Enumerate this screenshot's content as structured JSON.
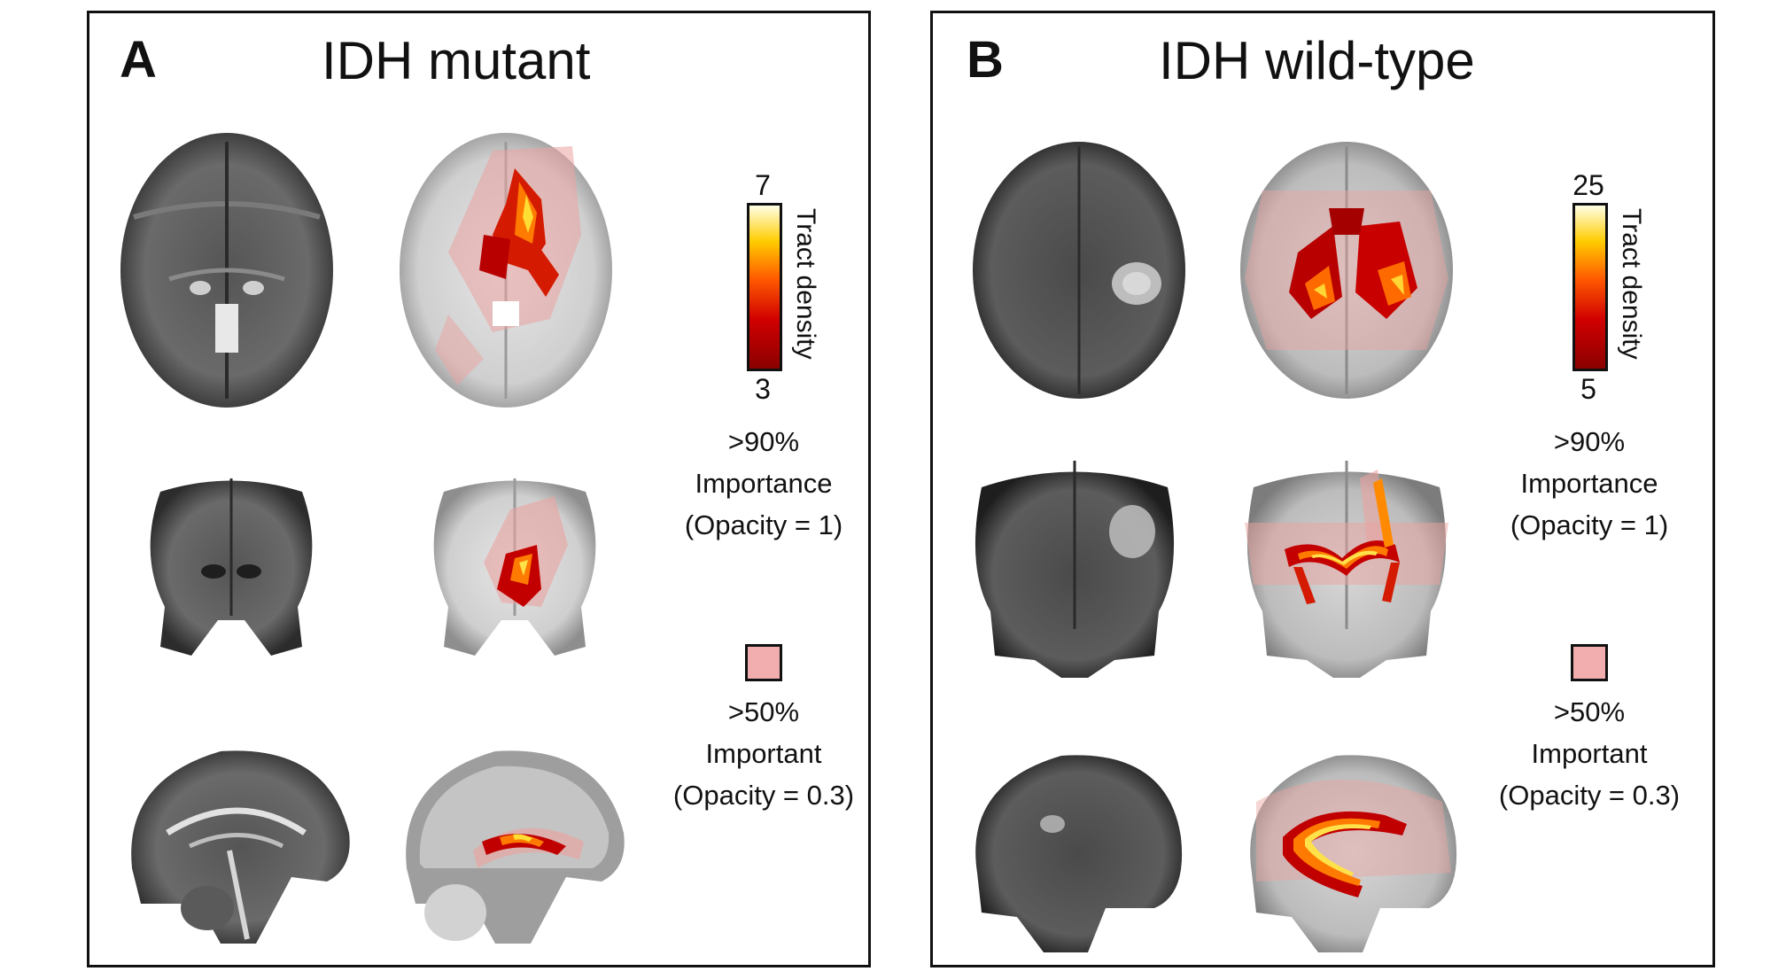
{
  "panels": [
    {
      "letter": "A",
      "title": "IDH mutant",
      "colorbar": {
        "max": "7",
        "min": "3",
        "label": "Tract density"
      },
      "legend_high": {
        "line1": ">90%",
        "line2": "Importance",
        "line3": "(Opacity = 1)"
      },
      "legend_low": {
        "line1": ">50%",
        "line2": "Important",
        "line3": "(Opacity = 0.3)"
      }
    },
    {
      "letter": "B",
      "title": "IDH wild-type",
      "colorbar": {
        "max": "25",
        "min": "5",
        "label": "Tract density"
      },
      "legend_high": {
        "line1": ">90%",
        "line2": "Importance",
        "line3": "(Opacity = 1)"
      },
      "legend_low": {
        "line1": ">50%",
        "line2": "Important",
        "line3": "(Opacity = 0.3)"
      }
    }
  ],
  "colors": {
    "border": "#111111",
    "swatch": "#f2aeae",
    "colormap": [
      "#8b0000",
      "#d10000",
      "#ff5a00",
      "#ffcc00",
      "#ffffe6"
    ],
    "mri_dark": "#3a3a3a",
    "mri_template": "#bdbdbd",
    "importance_overlay": "#e9a3a0"
  },
  "images": [
    "axial-mri",
    "axial-tract-map",
    "coronal-mri",
    "coronal-tract-map",
    "sagittal-mri",
    "sagittal-tract-map"
  ]
}
